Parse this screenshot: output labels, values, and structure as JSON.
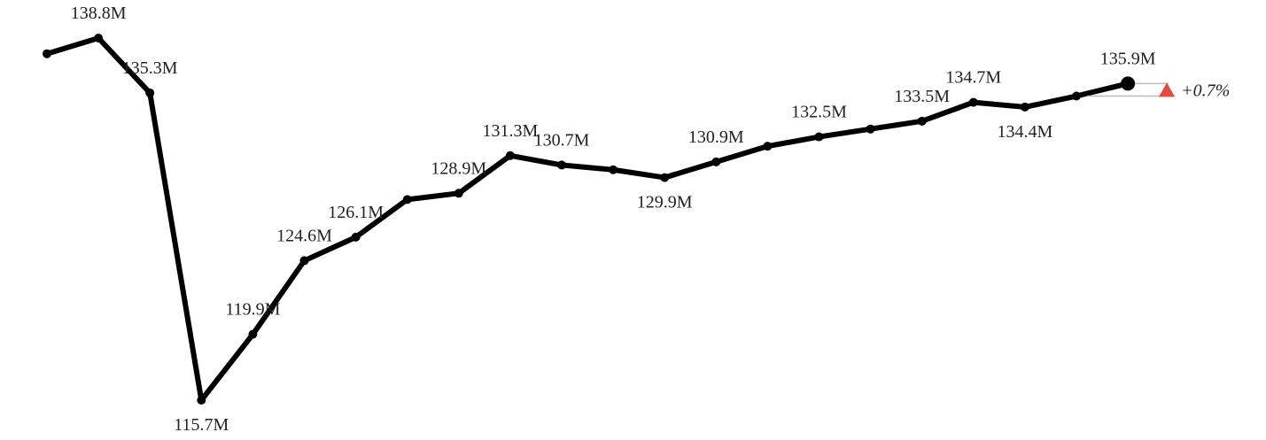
{
  "chart_data": {
    "type": "line",
    "series": [
      {
        "color": "#000000",
        "values": [
          137.8,
          138.8,
          135.3,
          115.7,
          119.9,
          124.6,
          126.1,
          128.5,
          128.9,
          131.3,
          130.7,
          130.4,
          129.9,
          130.9,
          131.9,
          132.5,
          133.0,
          133.5,
          134.7,
          134.4,
          135.1,
          135.9
        ],
        "value_labels": [
          null,
          "138.8M",
          "135.3M",
          "115.7M",
          "119.9M",
          "124.6M",
          "126.1M",
          null,
          "128.9M",
          "131.3M",
          "130.7M",
          null,
          "129.9M",
          "130.9M",
          null,
          "132.5M",
          null,
          "133.5M",
          "134.7M",
          "134.4M",
          null,
          "135.9M"
        ]
      }
    ],
    "change_label": "+0.7%",
    "change_color": "#e8473c"
  }
}
